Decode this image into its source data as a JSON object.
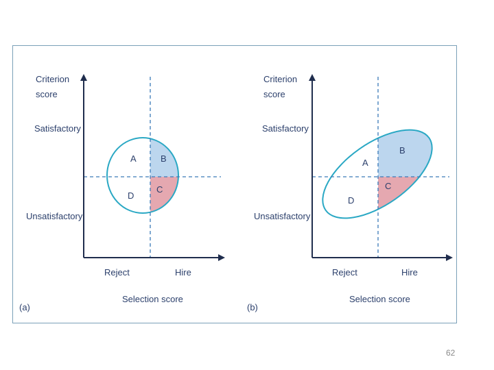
{
  "colors": {
    "axis": "#1f2d4d",
    "dashed": "#3a7ab8",
    "ellipse": "#2aa8c4",
    "quadrant_b": "#bcd6ee",
    "quadrant_c": "#e5a8b0",
    "text": "#2b3f6b",
    "frame": "#7aa0b8"
  },
  "panels": [
    {
      "id": "a",
      "panel_label": "(a)",
      "y_axis_title_line1": "Criterion",
      "y_axis_title_line2": "score",
      "y_high_label": "Satisfactory",
      "y_low_label": "Unsatisfactory",
      "x_left_label": "Reject",
      "x_right_label": "Hire",
      "x_axis_title": "Selection score",
      "quadrants": {
        "A": "A",
        "B": "B",
        "C": "C",
        "D": "D"
      }
    },
    {
      "id": "b",
      "panel_label": "(b)",
      "y_axis_title_line1": "Criterion",
      "y_axis_title_line2": "score",
      "y_high_label": "Satisfactory",
      "y_low_label": "Unsatisfactory",
      "x_left_label": "Reject",
      "x_right_label": "Hire",
      "x_axis_title": "Selection score",
      "quadrants": {
        "A": "A",
        "B": "B",
        "C": "C",
        "D": "D"
      }
    }
  ],
  "page_number": "62"
}
